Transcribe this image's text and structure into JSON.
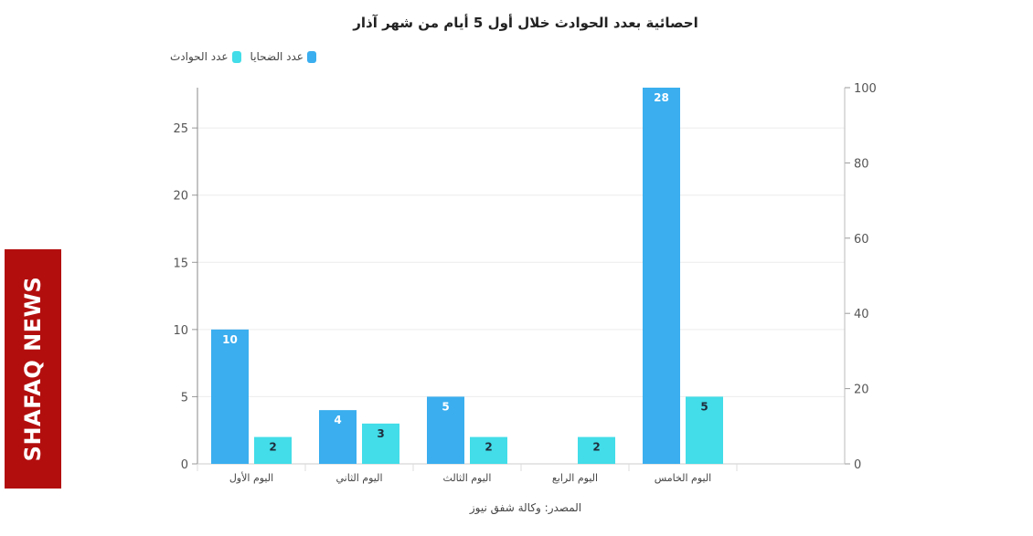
{
  "title": "احصائية بعدد الحوادث خلال أول 5 أيام من شهر آذار",
  "source": "المصدر: وكالة شفق نيوز",
  "watermark": "SHAFAQ NEWS",
  "legend": [
    {
      "name": "عدد الضحايا",
      "color": "#3aaeef"
    },
    {
      "name": "عدد الحوادث",
      "color": "#42dde8"
    }
  ],
  "chart_data": {
    "type": "bar",
    "title": "احصائية بعدد الحوادث خلال أول 5 أيام من شهر آذار",
    "categories": [
      "اليوم الأول",
      "اليوم الثاني",
      "اليوم الثالث",
      "اليوم الرابع",
      "اليوم الخامس"
    ],
    "series": [
      {
        "name": "عدد الضحايا",
        "values": [
          10,
          4,
          5,
          null,
          28
        ],
        "color": "#3aaeef"
      },
      {
        "name": "عدد الحوادث",
        "values": [
          2,
          3,
          2,
          2,
          5
        ],
        "color": "#42dde8"
      }
    ],
    "ylim": [
      0,
      28
    ],
    "yticks": [
      0,
      5,
      10,
      15,
      20,
      25
    ],
    "y2lim": [
      0,
      100
    ],
    "y2ticks": [
      0,
      20,
      40,
      60,
      80,
      100
    ],
    "grid": true,
    "legend_position": "top-left"
  }
}
